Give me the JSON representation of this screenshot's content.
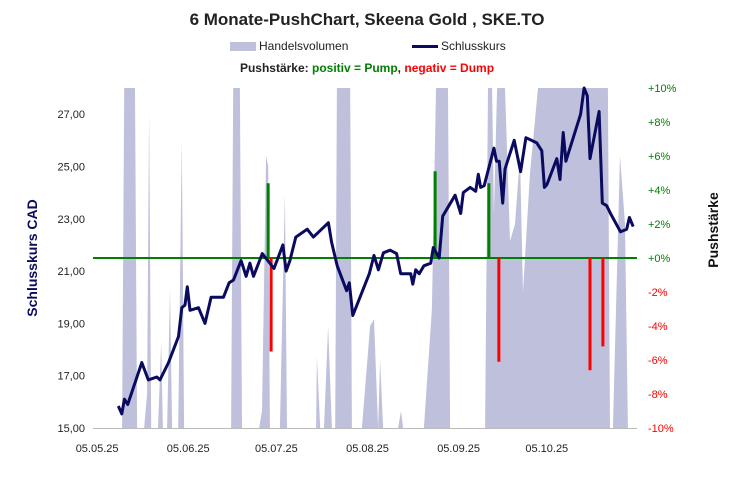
{
  "chart_data": {
    "type": "line",
    "title": "6 Monate-PushChart,  Skeena Gold , SKE.TO",
    "legend": [
      {
        "name": "Handelsvolumen",
        "color": "#bfc0dc",
        "kind": "area"
      },
      {
        "name": "Schlusskurs",
        "color": "#0a0a5f",
        "kind": "line"
      }
    ],
    "legend_placement": "top",
    "subtitle": {
      "label": "Pushstärke:",
      "positive": "positiv = Pump",
      "separator": ",",
      "negative": "negativ = Dump"
    },
    "ylabel": "Schlusskurs CAD",
    "y2label": "Pushstärke",
    "ylim": [
      15,
      28
    ],
    "y_ticks": [
      "15,00",
      "17,00",
      "19,00",
      "21,00",
      "23,00",
      "25,00",
      "27,00"
    ],
    "y_tick_values": [
      15,
      17,
      19,
      21,
      23,
      25,
      27
    ],
    "y2lim": [
      -10,
      10
    ],
    "y2_ticks": [
      "-10%",
      "-8%",
      "-6%",
      "-4%",
      "-2%",
      "+0%",
      "+2%",
      "+4%",
      "+6%",
      "+8%",
      "+10%"
    ],
    "y2_tick_values": [
      -10,
      -8,
      -6,
      -4,
      -2,
      0,
      2,
      4,
      6,
      8,
      10
    ],
    "x_unit": "days since 05.05.25",
    "xlim": [
      -1.4,
      183.7
    ],
    "x_ticks": [
      "05.05.25",
      "05.06.25",
      "05.07.25",
      "05.08.25",
      "05.09.25",
      "05.10.25"
    ],
    "x_tick_values": [
      0,
      31,
      61,
      92,
      123,
      153
    ],
    "colors": {
      "price": "#0a0a5f",
      "volume": "#bfc0dc",
      "pump": "#008000",
      "dump": "#ff0000",
      "zero_line": "#008000"
    },
    "price": [
      [
        7.2,
        15.84
      ],
      [
        8.4,
        15.54
      ],
      [
        9.3,
        16.1
      ],
      [
        10.4,
        15.9
      ],
      [
        15.2,
        17.5
      ],
      [
        17.4,
        16.84
      ],
      [
        20.3,
        16.95
      ],
      [
        21.4,
        16.84
      ],
      [
        24.3,
        17.5
      ],
      [
        27.7,
        18.5
      ],
      [
        28.8,
        19.6
      ],
      [
        29.9,
        19.7
      ],
      [
        30.7,
        20.4
      ],
      [
        31.6,
        19.5
      ],
      [
        34.5,
        19.6
      ],
      [
        36.7,
        19.0
      ],
      [
        38.8,
        20.0
      ],
      [
        43,
        20.0
      ],
      [
        44.9,
        20.55
      ],
      [
        46.4,
        20.66
      ],
      [
        49,
        21.4
      ],
      [
        50.7,
        20.8
      ],
      [
        52,
        21.3
      ],
      [
        53.2,
        20.8
      ],
      [
        56.2,
        21.67
      ],
      [
        60.2,
        21.1
      ],
      [
        63.2,
        22.0
      ],
      [
        64.3,
        21.0
      ],
      [
        65.6,
        21.4
      ],
      [
        67.6,
        22.3
      ],
      [
        71.5,
        22.6
      ],
      [
        73.6,
        22.3
      ],
      [
        78.7,
        22.85
      ],
      [
        79.8,
        22.1
      ],
      [
        81.7,
        21.2
      ],
      [
        84.9,
        20.25
      ],
      [
        85.8,
        20.55
      ],
      [
        87,
        19.3
      ],
      [
        92.6,
        20.9
      ],
      [
        94.2,
        21.6
      ],
      [
        95.7,
        21.05
      ],
      [
        97.4,
        21.7
      ],
      [
        99.7,
        21.8
      ],
      [
        101.9,
        21.67
      ],
      [
        103.3,
        20.9
      ],
      [
        106.7,
        20.9
      ],
      [
        107.4,
        20.5
      ],
      [
        108.4,
        21.05
      ],
      [
        109.6,
        20.9
      ],
      [
        111.2,
        21.2
      ],
      [
        113.5,
        21.3
      ],
      [
        114.4,
        21.9
      ],
      [
        116.4,
        21.5
      ],
      [
        117.6,
        23.1
      ],
      [
        121.8,
        23.9
      ],
      [
        123.7,
        23.2
      ],
      [
        124.6,
        24.0
      ],
      [
        126.9,
        24.2
      ],
      [
        128.8,
        24.05
      ],
      [
        129.7,
        24.7
      ],
      [
        130.5,
        24.2
      ],
      [
        131.7,
        24.27
      ],
      [
        135,
        25.7
      ],
      [
        135.9,
        25.2
      ],
      [
        136.8,
        25.2
      ],
      [
        138,
        23.6
      ],
      [
        138.8,
        24.9
      ],
      [
        141.9,
        26.0
      ],
      [
        144.1,
        24.8
      ],
      [
        145.9,
        26.1
      ],
      [
        149.6,
        25.9
      ],
      [
        151.3,
        25.6
      ],
      [
        152.2,
        24.2
      ],
      [
        153,
        24.3
      ],
      [
        156.4,
        25.3
      ],
      [
        157.5,
        24.5
      ],
      [
        158.6,
        26.3
      ],
      [
        159.5,
        25.2
      ],
      [
        164.5,
        27.0
      ],
      [
        165.7,
        28.0
      ],
      [
        166.8,
        27.7
      ],
      [
        167.7,
        25.3
      ],
      [
        170.8,
        27.1
      ],
      [
        171.9,
        23.6
      ],
      [
        173.4,
        23.5
      ],
      [
        174.7,
        23.2
      ],
      [
        178.1,
        22.5
      ],
      [
        180.2,
        22.6
      ],
      [
        181.1,
        23.05
      ],
      [
        182.4,
        22.7
      ]
    ],
    "push_percent": [
      [
        58.2,
        4.4
      ],
      [
        59.2,
        -5.5
      ],
      [
        115,
        5.1
      ],
      [
        133.3,
        4.4
      ],
      [
        136.7,
        -6.1
      ],
      [
        167.7,
        -6.6
      ],
      [
        172.1,
        -5.2
      ]
    ],
    "volume_relative": [
      [
        8.5,
        0
      ],
      [
        9.2,
        1
      ],
      [
        12.9,
        1
      ],
      [
        13.6,
        0
      ],
      [
        16,
        0
      ],
      [
        17,
        0.1
      ],
      [
        17.7,
        0.93
      ],
      [
        18.4,
        0
      ],
      [
        20.7,
        0
      ],
      [
        21.8,
        0.25
      ],
      [
        22.4,
        0
      ],
      [
        23.8,
        0
      ],
      [
        24.8,
        0.41
      ],
      [
        25.5,
        0
      ],
      [
        27.6,
        0
      ],
      [
        28.8,
        0.85
      ],
      [
        29.6,
        0
      ],
      [
        45.6,
        0
      ],
      [
        46.3,
        1
      ],
      [
        48.6,
        1
      ],
      [
        49.3,
        0
      ],
      [
        55.1,
        0
      ],
      [
        56.1,
        0.05
      ],
      [
        57.5,
        0.8
      ],
      [
        58.2,
        0.77
      ],
      [
        58.8,
        0
      ],
      [
        62.2,
        0
      ],
      [
        63.9,
        0.69
      ],
      [
        64.6,
        0
      ],
      [
        74.5,
        0
      ],
      [
        74.8,
        0.21
      ],
      [
        75.9,
        0
      ],
      [
        77.2,
        0
      ],
      [
        78.6,
        0.3
      ],
      [
        79.9,
        0
      ],
      [
        81,
        0
      ],
      [
        81.6,
        1
      ],
      [
        86.1,
        1
      ],
      [
        86.7,
        0
      ],
      [
        90.1,
        0
      ],
      [
        92.9,
        0.3
      ],
      [
        94.2,
        0.32
      ],
      [
        95.6,
        0
      ],
      [
        96.3,
        0.2
      ],
      [
        97.3,
        0
      ],
      [
        102.4,
        0
      ],
      [
        103.4,
        0.05
      ],
      [
        104.1,
        0
      ],
      [
        111.2,
        0
      ],
      [
        113.9,
        0.35
      ],
      [
        115.3,
        1
      ],
      [
        119.4,
        1
      ],
      [
        120.1,
        0
      ],
      [
        132,
        0
      ],
      [
        133,
        1
      ],
      [
        134.4,
        1
      ],
      [
        135,
        0.63
      ],
      [
        136.1,
        1
      ],
      [
        138.8,
        1
      ],
      [
        140.5,
        0.55
      ],
      [
        142.2,
        0.6
      ],
      [
        143.9,
        0.8
      ],
      [
        144.9,
        0.4
      ],
      [
        147.3,
        0.75
      ],
      [
        150,
        1
      ],
      [
        173.8,
        1
      ],
      [
        174.5,
        0
      ],
      [
        175.5,
        0
      ],
      [
        177.9,
        0.8
      ],
      [
        179.6,
        0.6
      ],
      [
        180.6,
        0
      ],
      [
        183.7,
        0
      ]
    ]
  }
}
